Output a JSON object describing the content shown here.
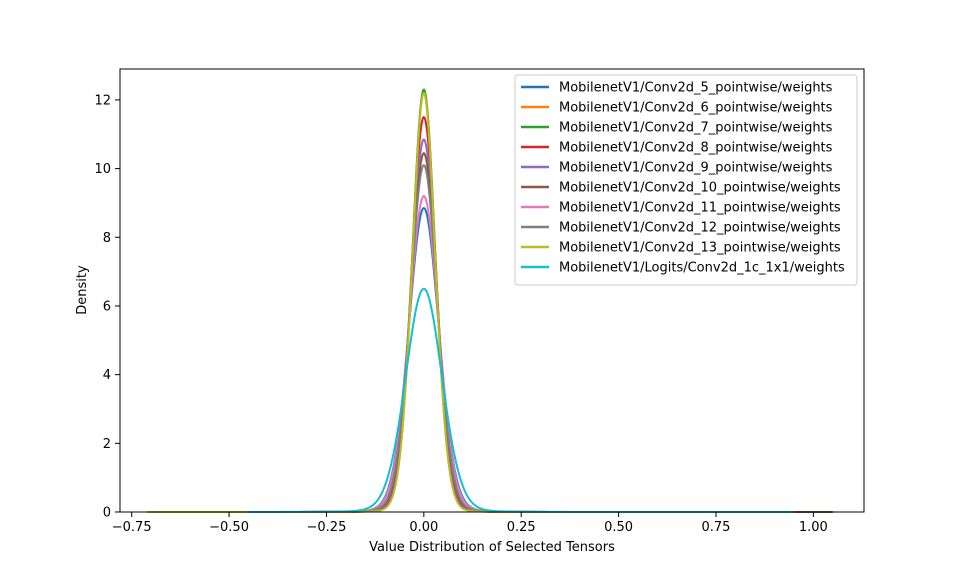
{
  "chart_data": {
    "type": "line",
    "title": "",
    "xlabel": "Value Distribution of Selected Tensors",
    "ylabel": "Density",
    "xlim": [
      -0.78,
      1.13
    ],
    "ylim": [
      0,
      12.9
    ],
    "xticks": [
      -0.75,
      -0.5,
      -0.25,
      0.0,
      0.25,
      0.5,
      0.75,
      1.0
    ],
    "xtick_labels": [
      "−0.75",
      "−0.50",
      "−0.25",
      "0.00",
      "0.25",
      "0.50",
      "0.75",
      "1.00"
    ],
    "yticks": [
      0,
      2,
      4,
      6,
      8,
      10,
      12
    ],
    "ytick_labels": [
      "0",
      "2",
      "4",
      "6",
      "8",
      "10",
      "12"
    ],
    "grid": false,
    "legend_position": "top-right",
    "series": [
      {
        "name": "MobilenetV1/Conv2d_5_pointwise/weights",
        "color": "#1f77b4",
        "peak": 8.85,
        "sigma": 0.04,
        "tail": 0.06,
        "xmin": -0.42,
        "xmax": 0.42
      },
      {
        "name": "MobilenetV1/Conv2d_6_pointwise/weights",
        "color": "#ff7f0e",
        "peak": 12.25,
        "sigma": 0.031,
        "tail": 0.045,
        "xmin": -0.38,
        "xmax": 0.4
      },
      {
        "name": "MobilenetV1/Conv2d_7_pointwise/weights",
        "color": "#2ca02c",
        "peak": 12.3,
        "sigma": 0.031,
        "tail": 0.045,
        "xmin": -0.35,
        "xmax": 0.38
      },
      {
        "name": "MobilenetV1/Conv2d_8_pointwise/weights",
        "color": "#d62728",
        "peak": 11.5,
        "sigma": 0.033,
        "tail": 0.048,
        "xmin": -0.36,
        "xmax": 0.4
      },
      {
        "name": "MobilenetV1/Conv2d_9_pointwise/weights",
        "color": "#9467bd",
        "peak": 10.85,
        "sigma": 0.034,
        "tail": 0.05,
        "xmin": -0.36,
        "xmax": 0.4
      },
      {
        "name": "MobilenetV1/Conv2d_10_pointwise/weights",
        "color": "#8c564b",
        "peak": 10.45,
        "sigma": 0.035,
        "tail": 0.052,
        "xmin": -0.36,
        "xmax": 1.05
      },
      {
        "name": "MobilenetV1/Conv2d_11_pointwise/weights",
        "color": "#e377c2",
        "peak": 9.2,
        "sigma": 0.039,
        "tail": 0.058,
        "xmin": -0.4,
        "xmax": 0.5
      },
      {
        "name": "MobilenetV1/Conv2d_12_pointwise/weights",
        "color": "#7f7f7f",
        "peak": 10.1,
        "sigma": 0.036,
        "tail": 0.054,
        "xmin": -0.4,
        "xmax": 0.6
      },
      {
        "name": "MobilenetV1/Conv2d_13_pointwise/weights",
        "color": "#bcbd22",
        "peak": 12.2,
        "sigma": 0.031,
        "tail": 0.042,
        "xmin": -0.71,
        "xmax": 0.4
      },
      {
        "name": "MobilenetV1/Logits/Conv2d_1c_1x1/weights",
        "color": "#17becf",
        "peak": 6.5,
        "sigma": 0.048,
        "tail": 0.075,
        "xmin": -0.45,
        "xmax": 0.95
      }
    ]
  }
}
